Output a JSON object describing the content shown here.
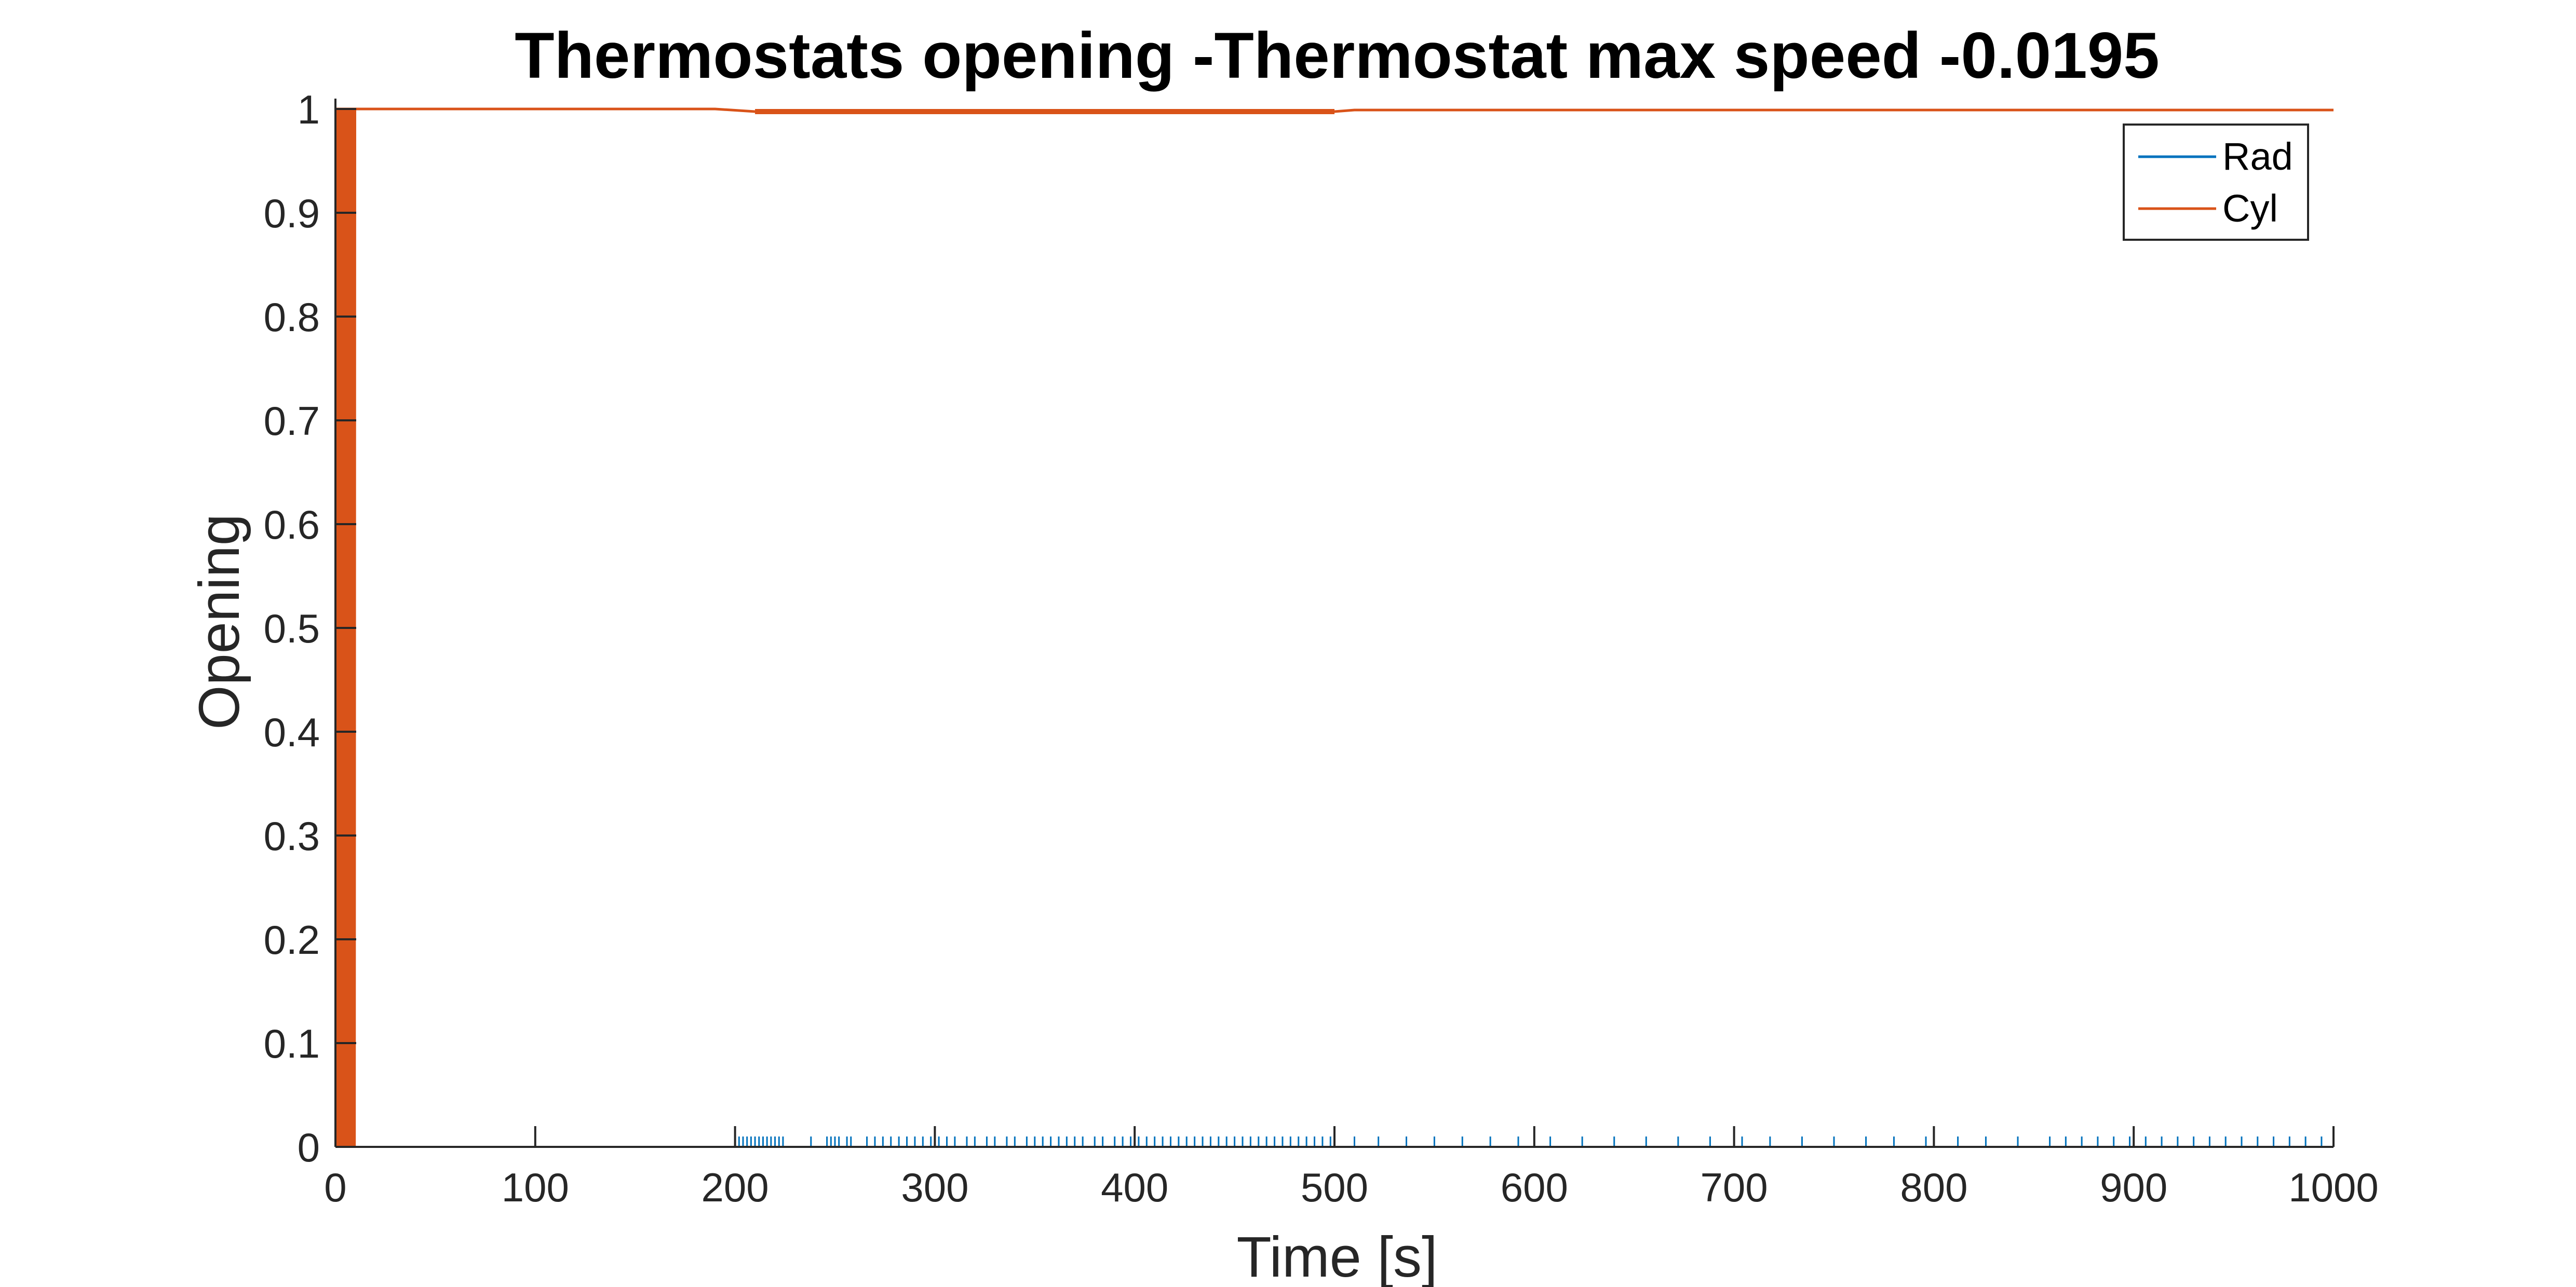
{
  "chart_data": {
    "type": "line",
    "title": "Thermostats opening -Thermostat max speed -0.0195",
    "xlabel": "Time [s]",
    "ylabel": "Opening",
    "xlim": [
      0,
      1000
    ],
    "ylim": [
      0,
      1
    ],
    "xticks": [
      0,
      100,
      200,
      300,
      400,
      500,
      600,
      700,
      800,
      900,
      1000
    ],
    "xtick_labels": [
      "0",
      "100",
      "200",
      "300",
      "400",
      "500",
      "600",
      "700",
      "800",
      "900",
      "1000"
    ],
    "yticks": [
      0,
      0.1,
      0.2,
      0.3,
      0.4,
      0.5,
      0.6,
      0.7,
      0.8,
      0.9,
      1
    ],
    "ytick_labels": [
      "0",
      "0.1",
      "0.2",
      "0.3",
      "0.4",
      "0.5",
      "0.6",
      "0.7",
      "0.8",
      "0.9",
      "1"
    ],
    "grid": false,
    "legend": {
      "position": "top-right",
      "entries": [
        "Rad",
        "Cyl"
      ]
    },
    "series": [
      {
        "name": "Rad",
        "color": "#0072BD",
        "baseline": 0,
        "spike_peak": 0.01,
        "spike_times": [
          200,
          202,
          204,
          206,
          208,
          210,
          212,
          214,
          216,
          218,
          220,
          222,
          224,
          238,
          246,
          248,
          250,
          252,
          256,
          258,
          266,
          270,
          274,
          278,
          282,
          286,
          290,
          294,
          298,
          302,
          306,
          310,
          316,
          320,
          326,
          330,
          336,
          340,
          346,
          350,
          354,
          358,
          362,
          366,
          370,
          374,
          380,
          384,
          390,
          394,
          398,
          402,
          406,
          410,
          414,
          418,
          422,
          426,
          430,
          434,
          438,
          442,
          446,
          450,
          454,
          458,
          462,
          466,
          470,
          474,
          478,
          482,
          486,
          490,
          494,
          498,
          510,
          522,
          536,
          550,
          564,
          578,
          592,
          608,
          624,
          640,
          656,
          672,
          688,
          704,
          718,
          734,
          750,
          766,
          780,
          796,
          812,
          826,
          842,
          858,
          866,
          874,
          882,
          890,
          898,
          906,
          914,
          922,
          930,
          938,
          946,
          954,
          962,
          970,
          978,
          986,
          994,
          1000
        ]
      },
      {
        "name": "Cyl",
        "color": "#D95319",
        "initial_oscillation": {
          "t_start": 0,
          "t_end": 10,
          "low": 0,
          "high": 1
        },
        "high_band": {
          "t_start": 210,
          "t_end": 500,
          "low": 0.995,
          "high": 1
        },
        "points": [
          [
            0,
            1
          ],
          [
            10,
            1
          ],
          [
            190,
            1
          ],
          [
            210,
            0.9975
          ],
          [
            500,
            0.9975
          ],
          [
            510,
            0.999
          ],
          [
            1000,
            0.999
          ]
        ]
      }
    ]
  }
}
